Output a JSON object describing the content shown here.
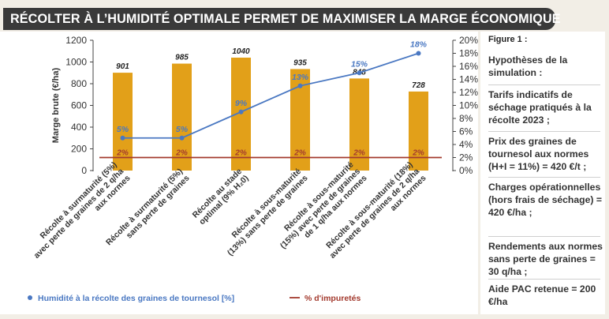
{
  "title": "RÉCOLTER À L’HUMIDITÉ OPTIMALE PERMET DE MAXIMISER LA MARGE ÉCONOMIQUE",
  "side_panel": {
    "figure_label": "Figure 1 :",
    "paragraphs": [
      "Hypothèses de la simulation :",
      "Tarifs indicatifs de séchage pratiqués à la récolte 2023 ;",
      "Prix des graines de tournesol aux normes (H+I = 11%) = 420 €/t ;",
      "Charges opérationnelles (hors frais de séchage) = 420 €/ha ;",
      "Rendements aux normes sans perte de graines = 30 q/ha ;",
      "Aide PAC retenue = 200 €/ha"
    ]
  },
  "colors": {
    "bar": "#e2a019",
    "humidity_line": "#4a78c2",
    "impurity_line": "#a33a2e",
    "title_bg": "#3a3a3a"
  },
  "chart_data": {
    "type": "bar",
    "ylabel": "Marge brute (€/ha)",
    "ylim": [
      0,
      1200
    ],
    "yticks": [
      "1200",
      "1000",
      "800",
      "600",
      "400",
      "200",
      "0"
    ],
    "y2lim": [
      0,
      20
    ],
    "y2ticks": [
      "20%",
      "18%",
      "16%",
      "14%",
      "12%",
      "10%",
      "8%",
      "6%",
      "4%",
      "2%",
      "0%"
    ],
    "categories": [
      [
        "Récolte à surmaturité (5%)",
        "avec perte de graines de 2 q/ha",
        "aux normes"
      ],
      [
        "Récolte à surmaturité (5%)",
        "sans perte de graines"
      ],
      [
        "Récolte au stade",
        "optimal (9% H₂0)"
      ],
      [
        "Récolte à sous-maturité",
        "(13%) sans perte de graines"
      ],
      [
        "Récolte à sous-maturité",
        "(15%) avec perte de graines",
        "de 1 q/ha aux normes"
      ],
      [
        "Récolte à sous-maturité (18%)",
        "avec perte de graines de 2 q/ha",
        "aux normes"
      ]
    ],
    "bars": {
      "values": [
        901,
        985,
        1040,
        935,
        848,
        728
      ],
      "labels": [
        "901",
        "985",
        "1040",
        "935",
        "848",
        "728"
      ]
    },
    "series": [
      {
        "name": "Humidité à la récolte des graines de tournesol [%]",
        "axis": "right",
        "values": [
          5,
          5,
          9,
          13,
          15,
          18
        ],
        "labels": [
          "5%",
          "5%",
          "9%",
          "13%",
          "15%",
          "18%"
        ]
      },
      {
        "name": "% d'impuretés",
        "axis": "right",
        "values": [
          2,
          2,
          2,
          2,
          2,
          2
        ],
        "labels": [
          "2%",
          "2%",
          "2%",
          "2%",
          "2%",
          "2%"
        ]
      }
    ],
    "legend": [
      "Humidité à la récolte des graines de tournesol [%]",
      "% d'impuretés"
    ]
  }
}
